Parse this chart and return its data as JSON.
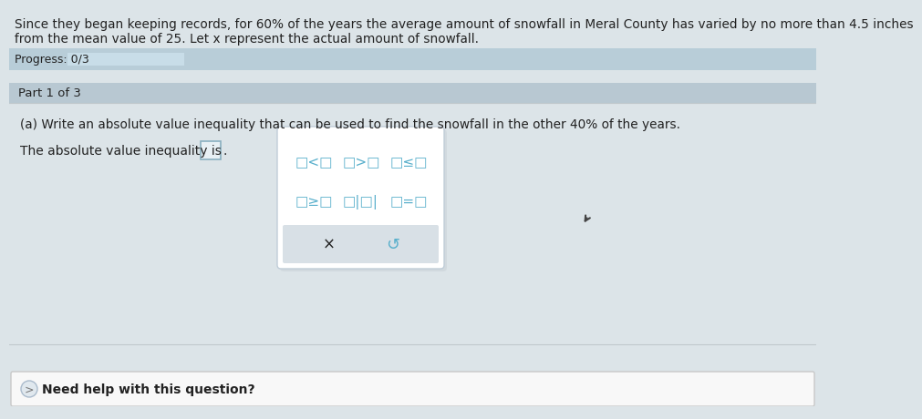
{
  "bg_color": "#dce4e8",
  "top_bg": "#dce4e8",
  "top_text_line1": "Since they began keeping records, for 60% of the years the average amount of snowfall in Meral County has varied by no more than 4.5 inches",
  "top_text_line2": "from the mean value of 25. Let x represent the actual amount of snowfall.",
  "progress_label": "Progress: 0/3",
  "progress_bar_color": "#a8ccd8",
  "progress_bar_bg": "#b8cdd8",
  "progress_fill_color": "#c8dde8",
  "part_label": "Part 1 of 3",
  "part_bg": "#b8c8d2",
  "content_bg": "#dce4e8",
  "question_text": "(a) Write an absolute value inequality that can be used to find the snowfall in the other 40% of the years.",
  "answer_label": "The absolute value inequality is",
  "popup_bg": "#ffffff",
  "popup_border": "#c0cdd8",
  "popup_shadow": "#d0d8de",
  "popup_row1_labels": [
    "□<□",
    "□>□",
    "□≤□"
  ],
  "popup_row2_labels": [
    "□≥□",
    "□|□|",
    "□=□"
  ],
  "popup_btn1": "×",
  "popup_btn2": "↺",
  "popup_btn_bg": "#d8e0e6",
  "need_help_bg": "#f8f8f8",
  "need_help_border": "#c8c8c8",
  "need_help_text": "Need help with this question?",
  "cursor_symbol": "▲",
  "text_color": "#333333",
  "blue_color": "#5ab0cc",
  "gray_color": "#777777",
  "dark_color": "#222222"
}
